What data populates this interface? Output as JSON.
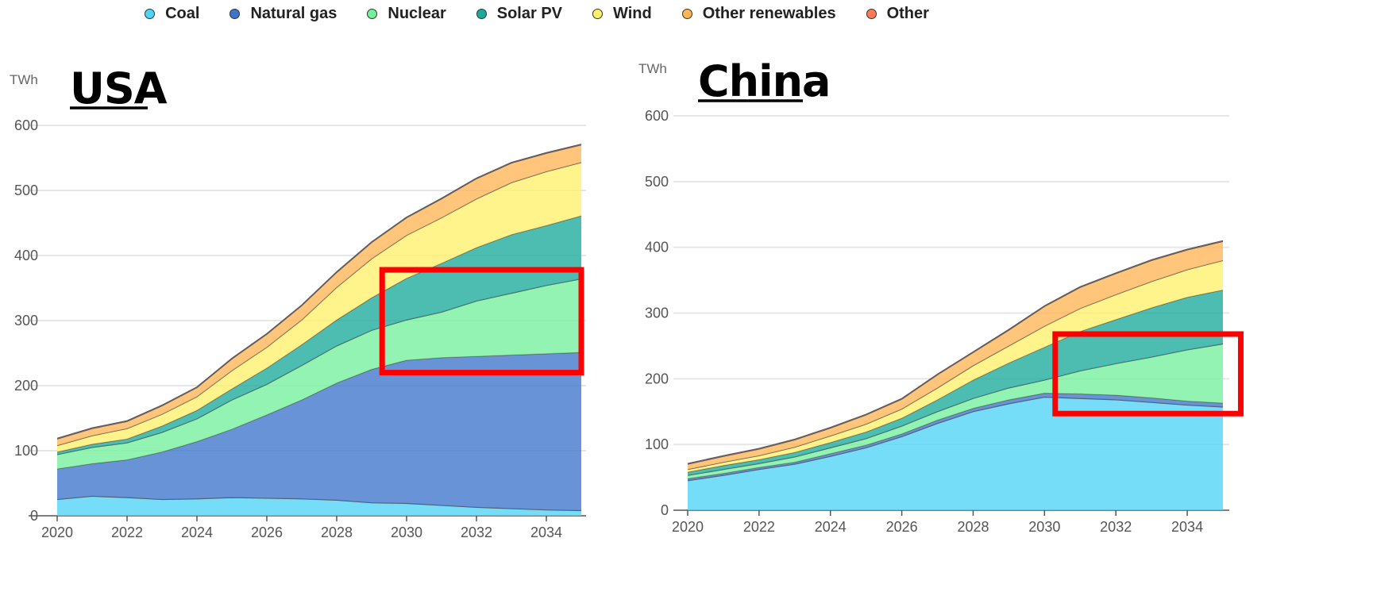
{
  "legend": [
    {
      "name": "Coal",
      "color": "#4fd4f6"
    },
    {
      "name": "Natural gas",
      "color": "#3f74cc"
    },
    {
      "name": "Nuclear",
      "color": "#74ef9c"
    },
    {
      "name": "Solar PV",
      "color": "#1bab9c"
    },
    {
      "name": "Wind",
      "color": "#fff06a"
    },
    {
      "name": "Other renewables",
      "color": "#ffb554"
    },
    {
      "name": "Other",
      "color": "#ff7a55"
    }
  ],
  "chart_data": [
    {
      "type": "area",
      "title": "USA",
      "ylabel": "TWh",
      "ylim": [
        0,
        600
      ],
      "yticks": [
        "0",
        "100",
        "200",
        "300",
        "400",
        "500",
        "600"
      ],
      "xticks": [
        "2020",
        "2022",
        "2024",
        "2026",
        "2028",
        "2030",
        "2032",
        "2034"
      ],
      "x": [
        2020,
        2021,
        2022,
        2023,
        2024,
        2025,
        2026,
        2027,
        2028,
        2029,
        2030,
        2031,
        2032,
        2033,
        2034,
        2035
      ],
      "stacked": true,
      "highlight_box": {
        "x": [
          2029.3,
          2035
        ],
        "y": [
          220,
          378
        ]
      },
      "series": [
        {
          "name": "Coal",
          "values": [
            25,
            30,
            28,
            25,
            26,
            28,
            27,
            26,
            24,
            20,
            19,
            16,
            13,
            11,
            9,
            8
          ]
        },
        {
          "name": "Natural gas",
          "values": [
            47,
            50,
            58,
            73,
            88,
            105,
            128,
            152,
            180,
            205,
            220,
            227,
            232,
            236,
            240,
            243
          ]
        },
        {
          "name": "Nuclear",
          "values": [
            22,
            25,
            26,
            30,
            35,
            45,
            47,
            53,
            57,
            60,
            62,
            70,
            85,
            95,
            105,
            113
          ]
        },
        {
          "name": "Solar PV",
          "values": [
            4,
            5,
            6,
            10,
            13,
            17,
            25,
            32,
            40,
            50,
            64,
            75,
            82,
            90,
            92,
            97
          ]
        },
        {
          "name": "Wind",
          "values": [
            10,
            13,
            16,
            18,
            21,
            28,
            32,
            38,
            50,
            60,
            66,
            70,
            75,
            80,
            83,
            82
          ]
        },
        {
          "name": "Other renewables",
          "values": [
            10,
            11,
            11,
            13,
            14,
            18,
            20,
            22,
            23,
            25,
            27,
            29,
            31,
            30,
            28,
            27
          ]
        },
        {
          "name": "Other",
          "values": [
            1,
            1,
            1,
            1,
            1,
            1,
            1,
            1,
            1,
            1,
            1,
            1,
            1,
            1,
            1,
            1
          ]
        }
      ]
    },
    {
      "type": "area",
      "title": "China",
      "ylabel": "TWh",
      "ylim": [
        0,
        600
      ],
      "yticks": [
        "0",
        "100",
        "200",
        "300",
        "400",
        "500",
        "600"
      ],
      "xticks": [
        "2020",
        "2022",
        "2024",
        "2026",
        "2028",
        "2030",
        "2032",
        "2034"
      ],
      "x": [
        2020,
        2021,
        2022,
        2023,
        2024,
        2025,
        2026,
        2027,
        2028,
        2029,
        2030,
        2031,
        2032,
        2033,
        2034,
        2035
      ],
      "stacked": true,
      "highlight_box": {
        "x": [
          2030.3,
          2035.5
        ],
        "y": [
          147,
          268
        ]
      },
      "series": [
        {
          "name": "Coal",
          "values": [
            45,
            53,
            62,
            70,
            82,
            95,
            112,
            132,
            150,
            162,
            172,
            170,
            168,
            164,
            160,
            157
          ]
        },
        {
          "name": "Natural gas",
          "values": [
            3,
            3,
            3,
            3,
            4,
            4,
            4,
            5,
            5,
            6,
            6,
            7,
            7,
            7,
            6,
            6
          ]
        },
        {
          "name": "Nuclear",
          "values": [
            5,
            6,
            6,
            8,
            9,
            10,
            12,
            13,
            15,
            18,
            20,
            35,
            48,
            62,
            78,
            90
          ]
        },
        {
          "name": "Solar PV",
          "values": [
            5,
            6,
            6,
            7,
            8,
            10,
            12,
            18,
            28,
            38,
            50,
            60,
            67,
            75,
            80,
            82
          ]
        },
        {
          "name": "Wind",
          "values": [
            4,
            5,
            6,
            8,
            10,
            12,
            14,
            18,
            22,
            26,
            32,
            35,
            38,
            40,
            42,
            45
          ]
        },
        {
          "name": "Other renewables",
          "values": [
            8,
            9,
            10,
            11,
            12,
            14,
            15,
            20,
            20,
            24,
            30,
            32,
            32,
            32,
            30,
            29
          ]
        },
        {
          "name": "Other",
          "values": [
            1,
            1,
            1,
            1,
            1,
            1,
            1,
            1,
            1,
            1,
            1,
            1,
            1,
            1,
            1,
            1
          ]
        }
      ]
    }
  ]
}
